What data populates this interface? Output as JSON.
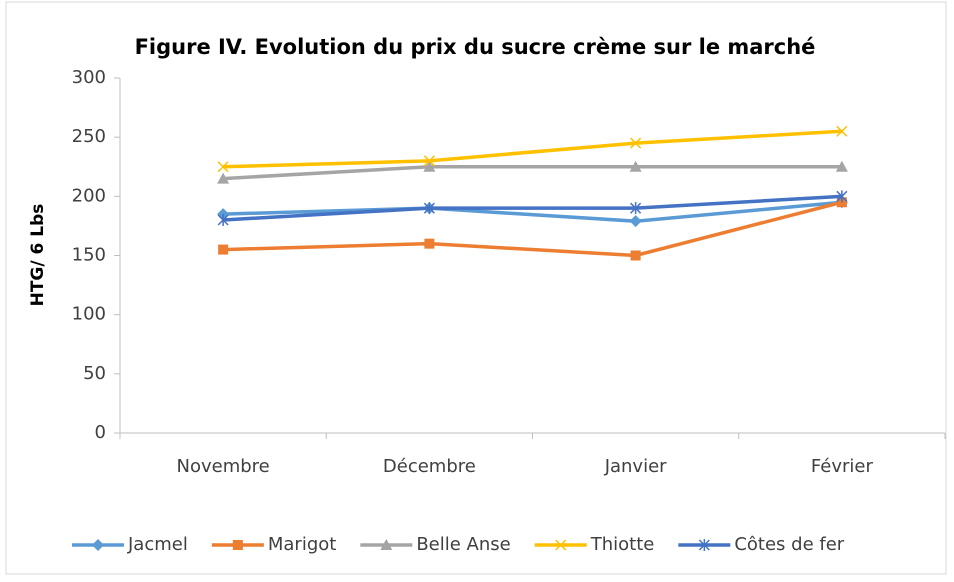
{
  "chart_data": {
    "type": "line",
    "title": "Figure IV. Evolution du prix du sucre crème sur le marché",
    "y_label": "HTG/ 6 Lbs",
    "categories": [
      "Novembre",
      "Décembre",
      "Janvier",
      "Février"
    ],
    "series": [
      {
        "name": "Jacmel",
        "color": "#5b9bd5",
        "marker": "diamond",
        "values": [
          185,
          190,
          179,
          195
        ]
      },
      {
        "name": "Marigot",
        "color": "#ed7d31",
        "marker": "square",
        "values": [
          155,
          160,
          150,
          195
        ]
      },
      {
        "name": "Belle Anse",
        "color": "#a5a5a5",
        "marker": "triangle",
        "values": [
          215,
          225,
          225,
          225
        ]
      },
      {
        "name": "Thiotte",
        "color": "#ffc000",
        "marker": "x",
        "values": [
          225,
          230,
          245,
          255
        ]
      },
      {
        "name": "Côtes de fer",
        "color": "#4472c4",
        "marker": "star",
        "values": [
          180,
          190,
          190,
          200
        ]
      }
    ],
    "ylim": [
      0,
      300
    ],
    "yticks": [
      0,
      50,
      100,
      150,
      200,
      250,
      300
    ],
    "grid": false,
    "legend": "bottom"
  }
}
